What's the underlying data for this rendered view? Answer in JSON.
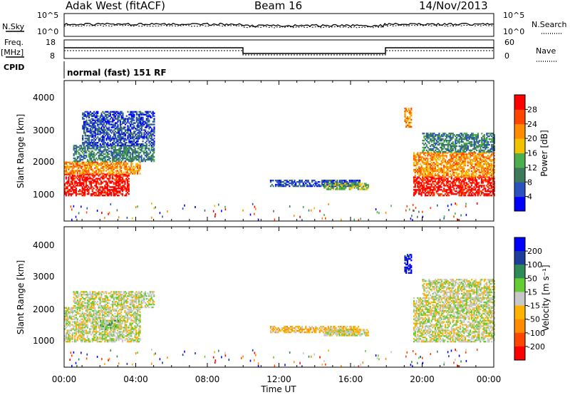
{
  "header": {
    "station": "Adak West (fitACF)",
    "beam": "Beam 16",
    "date": "14/Nov/2013"
  },
  "top_labels": {
    "nsky": "N.Sky",
    "freq": "Freq.",
    "freq_unit": "[MHz]",
    "cpid": "CPID",
    "nsearch": "N.Search",
    "nave": "Nave",
    "sky_ticks": [
      "10^5",
      "10^0"
    ],
    "search_ticks": [
      "10^5",
      "10^0"
    ],
    "freq_ticks": [
      "18",
      "8"
    ],
    "nave_ticks": [
      "60",
      "0"
    ],
    "cpid_text": "normal (fast) 151 RF"
  },
  "colors": {
    "power": [
      "#0000ff",
      "#2a52be",
      "#3d7a5c",
      "#4cae4c",
      "#f2c200",
      "#ff8c00",
      "#ff4500",
      "#ff0000"
    ],
    "velocity": [
      "#0000ff",
      "#1c3d99",
      "#2e8b57",
      "#66cc33",
      "#c8c8c8",
      "#ffb300",
      "#ff8c00",
      "#ff4500",
      "#ff0000"
    ]
  },
  "chart_data": [
    {
      "type": "heatmap",
      "name": "power",
      "ylabel": "Slant Range [km]",
      "ylim": [
        0,
        4500
      ],
      "yticks": [
        "1000",
        "2000",
        "3000",
        "4000"
      ],
      "xticks": [
        "00:00",
        "04:00",
        "08:00",
        "12:00",
        "16:00",
        "20:00",
        "00:00"
      ],
      "colorbar_label": "Power [dB]",
      "colorbar_ticks": [
        "4",
        "8",
        "12",
        "16",
        "20",
        "24",
        "28"
      ],
      "regions": [
        {
          "t": [
            0.0,
            3.6
          ],
          "r": [
            800,
            1500
          ],
          "level": 7
        },
        {
          "t": [
            0.0,
            4.2
          ],
          "r": [
            1500,
            1900
          ],
          "level": 5
        },
        {
          "t": [
            0.5,
            5.0
          ],
          "r": [
            1900,
            2400
          ],
          "level": 2
        },
        {
          "t": [
            1.0,
            5.0
          ],
          "r": [
            2400,
            3500
          ],
          "level": 1
        },
        {
          "t": [
            11.5,
            16.5
          ],
          "r": [
            1100,
            1300
          ],
          "level": 1
        },
        {
          "t": [
            14.5,
            17.0
          ],
          "r": [
            1000,
            1200
          ],
          "level": 3
        },
        {
          "t": [
            19.0,
            19.4
          ],
          "r": [
            3000,
            3600
          ],
          "level": 5
        },
        {
          "t": [
            19.5,
            24.0
          ],
          "r": [
            800,
            1400
          ],
          "level": 7
        },
        {
          "t": [
            19.5,
            24.0
          ],
          "r": [
            1400,
            2200
          ],
          "level": 5
        },
        {
          "t": [
            20.0,
            24.0
          ],
          "r": [
            2200,
            2800
          ],
          "level": 2
        }
      ]
    },
    {
      "type": "heatmap",
      "name": "velocity",
      "ylabel": "Slant Range [km]",
      "xlabel": "Time UT",
      "ylim": [
        0,
        4500
      ],
      "yticks": [
        "1000",
        "2000",
        "3000",
        "4000"
      ],
      "xticks": [
        "00:00",
        "04:00",
        "08:00",
        "12:00",
        "16:00",
        "20:00",
        "00:00"
      ],
      "colorbar_label": "Velocity [m s⁻¹]",
      "colorbar_ticks": [
        "200",
        "100",
        "50",
        "15",
        "-15",
        "-50",
        "-100",
        "-200"
      ],
      "regions": [
        {
          "t": [
            0.0,
            4.2
          ],
          "r": [
            800,
            1900
          ],
          "level": 4
        },
        {
          "t": [
            0.5,
            5.0
          ],
          "r": [
            1900,
            2400
          ],
          "level": 4
        },
        {
          "t": [
            2.0,
            3.0
          ],
          "r": [
            1200,
            1500
          ],
          "level": 3
        },
        {
          "t": [
            11.5,
            16.5
          ],
          "r": [
            1100,
            1300
          ],
          "level": 5
        },
        {
          "t": [
            14.5,
            17.0
          ],
          "r": [
            1000,
            1200
          ],
          "level": 4
        },
        {
          "t": [
            19.0,
            19.4
          ],
          "r": [
            3000,
            3600
          ],
          "level": 0
        },
        {
          "t": [
            19.5,
            24.0
          ],
          "r": [
            800,
            2200
          ],
          "level": 4
        },
        {
          "t": [
            20.0,
            24.0
          ],
          "r": [
            2200,
            2800
          ],
          "level": 4
        }
      ]
    }
  ]
}
